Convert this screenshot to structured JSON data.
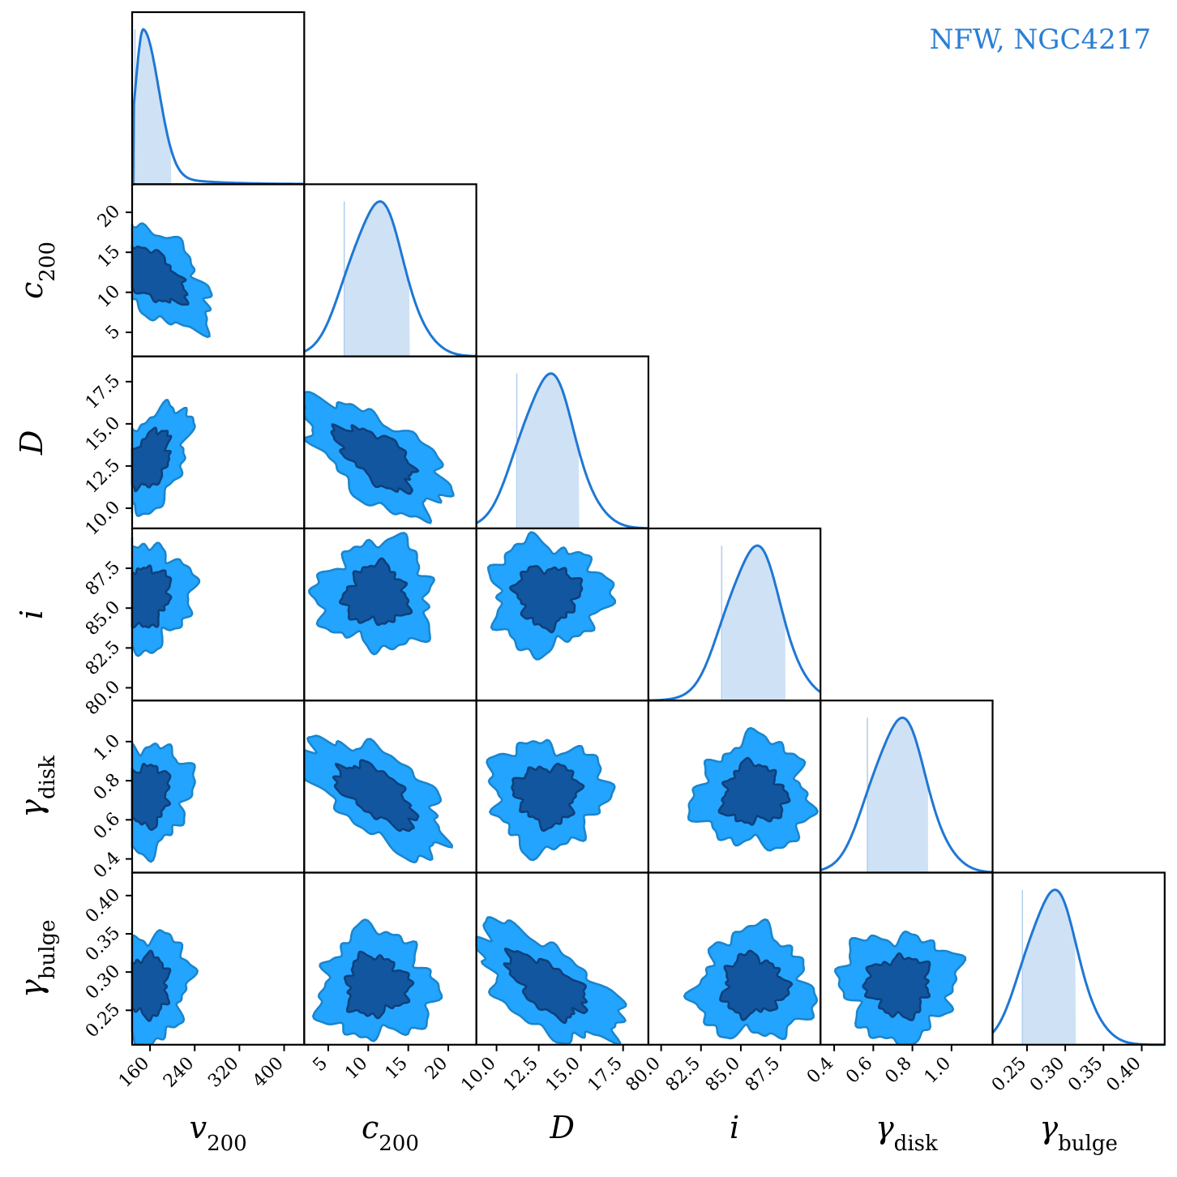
{
  "title": "NFW, NGC4217",
  "colors": {
    "kde_line": "#1f77d4",
    "kde_fill": "#cfe2f5",
    "contour_outer": "#22a4ff",
    "contour_outer_edge": "#1a85cc",
    "contour_inner": "#1256a0",
    "contour_inner_edge": "#0d3f78",
    "title": "#2a7fd4"
  },
  "parameters": [
    {
      "key": "v200",
      "label_base": "v",
      "label_sub": "200",
      "range": [
        128,
        436
      ],
      "ticks": [
        160,
        240,
        320,
        400
      ],
      "tick_labels": [
        "160",
        "240",
        "320",
        "400"
      ]
    },
    {
      "key": "c200",
      "label_base": "c",
      "label_sub": "200",
      "range": [
        2,
        23.5
      ],
      "ticks": [
        5,
        10,
        15,
        20
      ],
      "tick_labels": [
        "5",
        "10",
        "15",
        "20"
      ]
    },
    {
      "key": "D",
      "label_base": "D",
      "label_sub": "",
      "range": [
        8.8,
        19.0
      ],
      "ticks": [
        10.0,
        12.5,
        15.0,
        17.5
      ],
      "tick_labels": [
        "10.0",
        "12.5",
        "15.0",
        "17.5"
      ]
    },
    {
      "key": "i",
      "label_base": "i",
      "label_sub": "",
      "range": [
        79.2,
        90.0
      ],
      "ticks": [
        80.0,
        82.5,
        85.0,
        87.5
      ],
      "tick_labels": [
        "80.0",
        "82.5",
        "85.0",
        "87.5"
      ]
    },
    {
      "key": "gdisk",
      "label_base": "γ",
      "label_sub": "disk",
      "range": [
        0.33,
        1.21
      ],
      "ticks": [
        0.4,
        0.6,
        0.8,
        1.0
      ],
      "tick_labels": [
        "0.4",
        "0.6",
        "0.8",
        "1.0"
      ]
    },
    {
      "key": "gbulge",
      "label_base": "γ",
      "label_sub": "bulge",
      "range": [
        0.205,
        0.43
      ],
      "ticks": [
        0.25,
        0.3,
        0.35,
        0.4
      ],
      "tick_labels": [
        "0.25",
        "0.30",
        "0.35",
        "0.40"
      ]
    }
  ],
  "chart_data": {
    "type": "corner",
    "title": "NFW, NGC4217",
    "marginals": [
      {
        "param": "v200",
        "interval": [
          133,
          198
        ],
        "peak": 148,
        "shape": "skewed-right"
      },
      {
        "param": "c200",
        "interval": [
          7.0,
          15.2
        ],
        "peak": 11.0
      },
      {
        "param": "D",
        "interval": [
          11.2,
          14.9
        ],
        "peak": 13.0
      },
      {
        "param": "i",
        "interval": [
          83.8,
          87.8
        ],
        "peak": 85.8
      },
      {
        "param": "gdisk",
        "interval": [
          0.57,
          0.88
        ],
        "peak": 0.73
      },
      {
        "param": "gbulge",
        "interval": [
          0.244,
          0.314
        ],
        "peak": 0.282
      }
    ],
    "contour_levels": [
      "outer",
      "inner"
    ],
    "joint_pairs": [
      {
        "x": "v200",
        "y": "c200",
        "center": [
          165,
          12
        ],
        "correlation": "negative"
      },
      {
        "x": "v200",
        "y": "D",
        "center": [
          155,
          12.8
        ],
        "correlation": "positive"
      },
      {
        "x": "c200",
        "y": "D",
        "center": [
          11,
          13
        ],
        "correlation": "negative"
      },
      {
        "x": "v200",
        "y": "i",
        "center": [
          150,
          85.8
        ]
      },
      {
        "x": "c200",
        "y": "i",
        "center": [
          11,
          85.8
        ]
      },
      {
        "x": "D",
        "y": "i",
        "center": [
          13,
          85.8
        ]
      },
      {
        "x": "v200",
        "y": "gdisk",
        "center": [
          150,
          0.73
        ]
      },
      {
        "x": "c200",
        "y": "gdisk",
        "center": [
          11,
          0.73
        ],
        "correlation": "negative"
      },
      {
        "x": "D",
        "y": "gdisk",
        "center": [
          13,
          0.73
        ]
      },
      {
        "x": "i",
        "y": "gdisk",
        "center": [
          85.8,
          0.73
        ]
      },
      {
        "x": "v200",
        "y": "gbulge",
        "center": [
          150,
          0.282
        ]
      },
      {
        "x": "c200",
        "y": "gbulge",
        "center": [
          11,
          0.282
        ]
      },
      {
        "x": "D",
        "y": "gbulge",
        "center": [
          13,
          0.282
        ],
        "correlation": "negative"
      },
      {
        "x": "i",
        "y": "gbulge",
        "center": [
          85.8,
          0.282
        ]
      },
      {
        "x": "gdisk",
        "y": "gbulge",
        "center": [
          0.73,
          0.282
        ]
      }
    ]
  }
}
